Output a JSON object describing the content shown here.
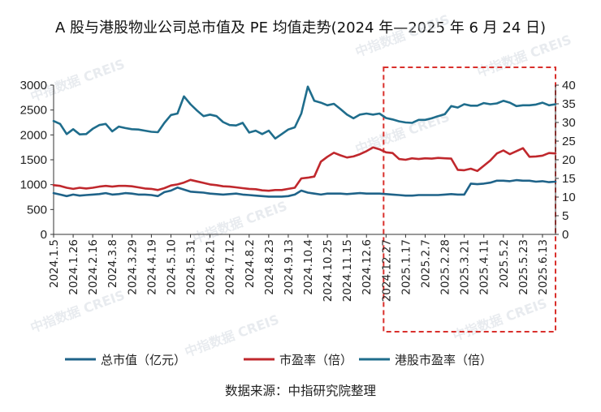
{
  "title": "A 股与港股物业公司总市值及 PE 均值走势(2024 年—2025 年 6 月 24 日)",
  "watermark": "中指数据 CREIS",
  "source": "数据来源：中指研究院整理",
  "colors": {
    "market_cap": "#1f6389",
    "pe_a": "#c0282d",
    "pe_hk": "#1f6d8c",
    "highlight": "#d9302c"
  },
  "chart_data": {
    "type": "line",
    "title": "A 股与港股物业公司总市值及 PE 均值走势(2024 年—2025 年 6 月 24 日)",
    "left_axis": {
      "range": [
        0,
        3000
      ],
      "ticks": [
        "0",
        "500",
        "1000",
        "1500",
        "2000",
        "2500",
        "3000"
      ]
    },
    "right_axis": {
      "range": [
        0,
        40
      ],
      "ticks": [
        "0",
        "5",
        "10",
        "15",
        "20",
        "25",
        "30",
        "35",
        "40"
      ]
    },
    "x_labels": [
      "2024.1.5",
      "2024.1.26",
      "2024.2.16",
      "2024.3.8",
      "2024.3.29",
      "2024.4.19",
      "2024.5.10",
      "2024.5.31",
      "2024.6.21",
      "2024.7.12",
      "2024.8.2",
      "2024.8.23",
      "2024.9.13",
      "2024.10.4",
      "2024.10.25",
      "2024.11.15",
      "2024.12.6",
      "2024.12.27",
      "2025.1.17",
      "2025.2.7",
      "2025.2.28",
      "2025.3.21",
      "2025.4.11",
      "2025.5.2",
      "2025.5.23",
      "2025.6.13"
    ],
    "x_count": 78,
    "highlight_range": [
      "2024.12.27",
      "2025.6.24"
    ],
    "series": [
      {
        "name": "总市值（亿元）",
        "axis": "left",
        "color": "#1f6389",
        "values": [
          830,
          800,
          770,
          800,
          780,
          790,
          800,
          810,
          830,
          800,
          810,
          830,
          820,
          800,
          800,
          790,
          770,
          850,
          880,
          940,
          900,
          860,
          850,
          840,
          820,
          810,
          800,
          810,
          820,
          800,
          790,
          780,
          770,
          760,
          760,
          760,
          770,
          800,
          880,
          840,
          820,
          800,
          820,
          820,
          820,
          810,
          820,
          830,
          820,
          820,
          820,
          810,
          800,
          790,
          780,
          780,
          790,
          790,
          790,
          790,
          800,
          810,
          800,
          800,
          1020,
          1010,
          1020,
          1040,
          1080,
          1080,
          1070,
          1090,
          1080,
          1080,
          1060,
          1070,
          1050,
          1060
        ]
      },
      {
        "name": "市盈率（倍）",
        "axis": "right",
        "color": "#c0282d",
        "values": [
          13.2,
          13.0,
          12.5,
          12.2,
          12.5,
          12.3,
          12.5,
          12.8,
          13.0,
          12.8,
          13.0,
          13.0,
          12.9,
          12.6,
          12.3,
          12.2,
          11.9,
          12.4,
          13.1,
          13.4,
          13.9,
          14.6,
          14.2,
          13.8,
          13.4,
          13.2,
          12.9,
          12.8,
          12.6,
          12.4,
          12.2,
          12.1,
          11.8,
          11.7,
          11.9,
          11.9,
          12.2,
          12.5,
          15.0,
          15.2,
          15.5,
          19.5,
          20.8,
          21.9,
          21.2,
          20.6,
          20.9,
          21.5,
          22.3,
          23.3,
          22.8,
          22.0,
          21.8,
          20.2,
          20.0,
          20.4,
          20.2,
          20.4,
          20.3,
          20.5,
          20.4,
          20.3,
          17.3,
          17.2,
          17.6,
          17.0,
          18.4,
          19.8,
          21.7,
          22.5,
          21.5,
          22.3,
          23.1,
          20.8,
          20.9,
          21.1,
          21.8,
          21.7
        ]
      },
      {
        "name": "港股市盈率（倍）",
        "axis": "right",
        "color": "#1f6d8c",
        "values": [
          30.4,
          29.6,
          26.9,
          28.2,
          26.8,
          26.9,
          28.3,
          29.3,
          29.6,
          27.6,
          28.9,
          28.5,
          28.2,
          28.1,
          27.8,
          27.5,
          27.4,
          29.9,
          32.0,
          32.4,
          37.0,
          34.9,
          33.2,
          31.7,
          32.1,
          31.7,
          30.1,
          29.3,
          29.2,
          29.9,
          27.3,
          27.8,
          26.9,
          27.8,
          25.7,
          26.9,
          28.1,
          28.7,
          32.4,
          39.6,
          35.8,
          35.3,
          34.6,
          35.0,
          33.6,
          32.1,
          31.1,
          32.1,
          32.4,
          32.1,
          32.4,
          31.2,
          30.8,
          30.3,
          30.0,
          29.9,
          30.7,
          30.7,
          31.1,
          31.7,
          32.2,
          34.4,
          34.0,
          34.9,
          34.5,
          34.5,
          35.2,
          34.9,
          35.1,
          35.8,
          35.3,
          34.4,
          34.6,
          34.6,
          34.8,
          35.3,
          34.6,
          34.9
        ]
      }
    ],
    "legend": [
      "总市值（亿元）",
      "市盈率（倍）",
      "港股市盈率（倍）"
    ]
  }
}
